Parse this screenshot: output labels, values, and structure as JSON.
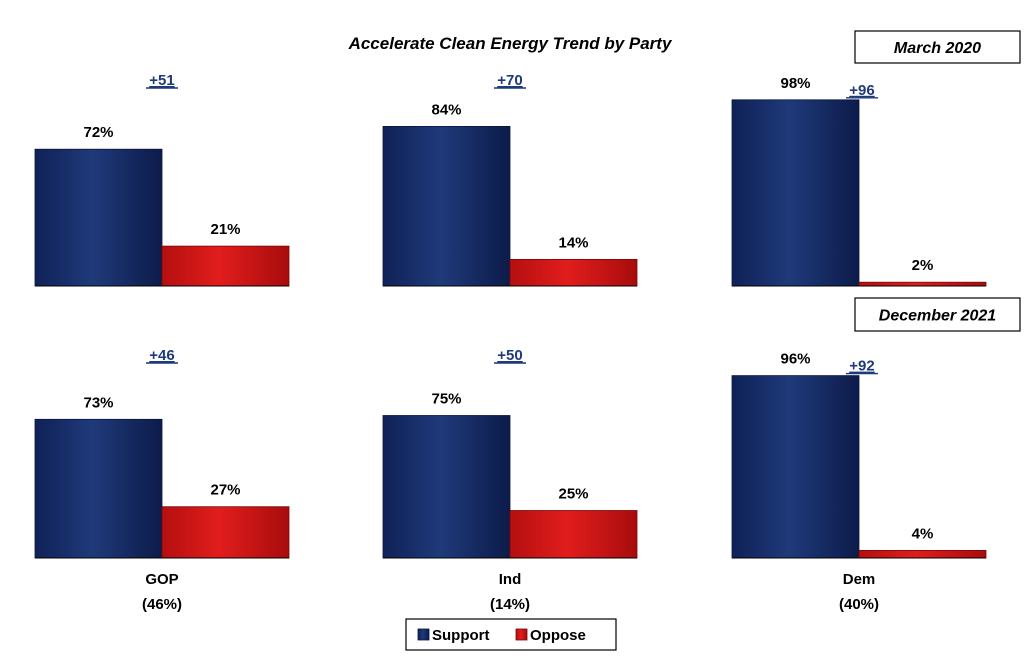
{
  "chart_data": {
    "type": "bar",
    "title": "Accelerate Clean Energy Trend by Party",
    "periods": [
      "March 2020",
      "December 2021"
    ],
    "categories": [
      "GOP",
      "Ind",
      "Dem"
    ],
    "category_shares": [
      "(46%)",
      "(14%)",
      "(40%)"
    ],
    "legend": {
      "placement": "bottom-center",
      "items": [
        "Support",
        "Oppose"
      ]
    },
    "ylim": [
      0,
      100
    ],
    "grid": false,
    "colors": {
      "Support": "#1f3a7a",
      "Oppose": "#e11d1d"
    },
    "panels": [
      {
        "period": "March 2020",
        "category": "GOP",
        "support": 72,
        "oppose": 21,
        "support_label": "72%",
        "oppose_label": "21%",
        "margin": "+51"
      },
      {
        "period": "March 2020",
        "category": "Ind",
        "support": 84,
        "oppose": 14,
        "support_label": "84%",
        "oppose_label": "14%",
        "margin": "+70"
      },
      {
        "period": "March 2020",
        "category": "Dem",
        "support": 98,
        "oppose": 2,
        "support_label": "98%",
        "oppose_label": "2%",
        "margin": "+96"
      },
      {
        "period": "December 2021",
        "category": "GOP",
        "support": 73,
        "oppose": 27,
        "support_label": "73%",
        "oppose_label": "27%",
        "margin": "+46"
      },
      {
        "period": "December 2021",
        "category": "Ind",
        "support": 75,
        "oppose": 25,
        "support_label": "75%",
        "oppose_label": "25%",
        "margin": "+50"
      },
      {
        "period": "December 2021",
        "category": "Dem",
        "support": 96,
        "oppose": 4,
        "support_label": "96%",
        "oppose_label": "4%",
        "margin": "+92"
      }
    ]
  }
}
